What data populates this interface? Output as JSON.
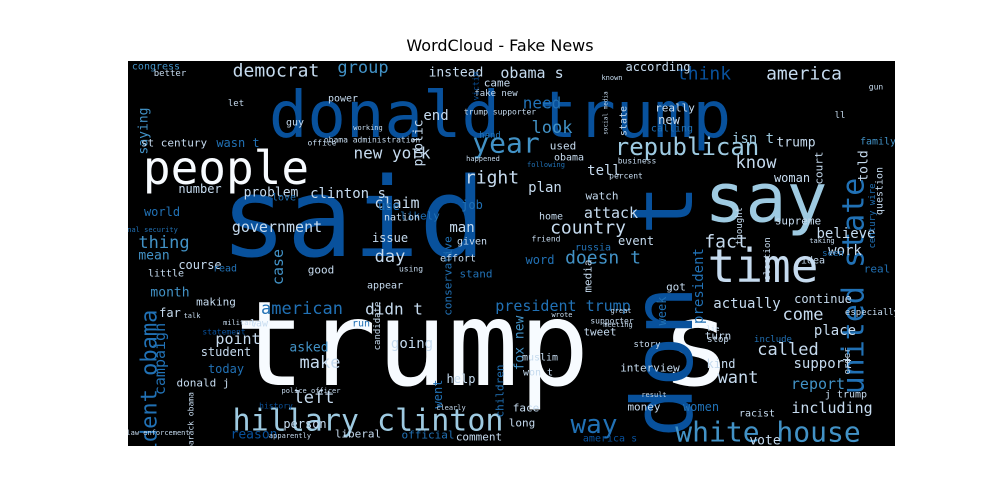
{
  "figure": {
    "title": "WordCloud - Fake News",
    "colors": {
      "background": "#000000",
      "dark": "#08519c",
      "mid": "#2171b5",
      "midlight": "#4292c6",
      "light": "#9ecae1",
      "pale": "#c6dbef",
      "white": "#f7fbff"
    }
  },
  "words": [
    {
      "text": "trump s",
      "c": "white"
    },
    {
      "text": "said",
      "c": "dark"
    },
    {
      "text": "donald trump",
      "c": "dark"
    },
    {
      "text": "don t",
      "c": "dark"
    },
    {
      "text": "say",
      "c": "light"
    },
    {
      "text": "people",
      "c": "white"
    },
    {
      "text": "time",
      "c": "pale"
    },
    {
      "text": "hillary clinton",
      "c": "light"
    },
    {
      "text": "united state",
      "c": "mid"
    },
    {
      "text": "white house",
      "c": "midlight"
    },
    {
      "text": "year",
      "c": "midlight"
    },
    {
      "text": "republican",
      "c": "light"
    },
    {
      "text": "president obama",
      "c": "mid"
    },
    {
      "text": "way",
      "c": "mid"
    },
    {
      "text": "democrat",
      "c": "pale"
    },
    {
      "text": "america",
      "c": "pale"
    },
    {
      "text": "new york",
      "c": "pale"
    },
    {
      "text": "obama s",
      "c": "pale"
    },
    {
      "text": "right",
      "c": "pale"
    },
    {
      "text": "country",
      "c": "pale"
    },
    {
      "text": "think",
      "c": "dark"
    },
    {
      "text": "american",
      "c": "mid"
    },
    {
      "text": "president trump",
      "c": "mid"
    },
    {
      "text": "know",
      "c": "pale"
    },
    {
      "text": "fact",
      "c": "pale"
    },
    {
      "text": "doesn t",
      "c": "midlight"
    },
    {
      "text": "thing",
      "c": "midlight"
    },
    {
      "text": "government",
      "c": "pale"
    },
    {
      "text": "group",
      "c": "midlight"
    },
    {
      "text": "look",
      "c": "midlight"
    },
    {
      "text": "need",
      "c": "mid"
    },
    {
      "text": "claim",
      "c": "pale"
    },
    {
      "text": "attack",
      "c": "pale"
    },
    {
      "text": "day",
      "c": "pale"
    },
    {
      "text": "didn t",
      "c": "pale"
    },
    {
      "text": "want",
      "c": "pale"
    },
    {
      "text": "called",
      "c": "pale"
    },
    {
      "text": "make",
      "c": "pale"
    },
    {
      "text": "left",
      "c": "pale"
    },
    {
      "text": "come",
      "c": "pale"
    },
    {
      "text": "including",
      "c": "pale"
    },
    {
      "text": "report",
      "c": "midlight"
    },
    {
      "text": "clinton s",
      "c": "pale"
    },
    {
      "text": "campaign",
      "c": "mid"
    },
    {
      "text": "president",
      "c": "mid"
    },
    {
      "text": "believe",
      "c": "pale"
    },
    {
      "text": "work",
      "c": "pale"
    },
    {
      "text": "case",
      "c": "midlight"
    },
    {
      "text": "point",
      "c": "pale"
    },
    {
      "text": "support",
      "c": "pale"
    },
    {
      "text": "actually",
      "c": "pale"
    },
    {
      "text": "told",
      "c": "pale"
    },
    {
      "text": "reason",
      "c": "dark"
    },
    {
      "text": "man",
      "c": "pale"
    },
    {
      "text": "isn t",
      "c": "light"
    },
    {
      "text": "fox new",
      "c": "midlight"
    },
    {
      "text": "tell",
      "c": "pale"
    },
    {
      "text": "plan",
      "c": "pale"
    },
    {
      "text": "woman",
      "c": "pale"
    },
    {
      "text": "month",
      "c": "midlight"
    },
    {
      "text": "place",
      "c": "pale"
    },
    {
      "text": "saying",
      "c": "midlight"
    },
    {
      "text": "going",
      "c": "pale"
    },
    {
      "text": "continue",
      "c": "pale"
    },
    {
      "text": "vote",
      "c": "pale"
    },
    {
      "text": "end",
      "c": "pale"
    },
    {
      "text": "st century",
      "c": "pale"
    },
    {
      "text": "trump",
      "c": "pale"
    },
    {
      "text": "mean",
      "c": "midlight"
    },
    {
      "text": "problem",
      "c": "pale"
    },
    {
      "text": "number",
      "c": "pale"
    },
    {
      "text": "world",
      "c": "mid"
    },
    {
      "text": "public",
      "c": "pale"
    },
    {
      "text": "course",
      "c": "pale"
    },
    {
      "text": "student",
      "c": "pale"
    },
    {
      "text": "asked",
      "c": "midlight"
    },
    {
      "text": "new",
      "c": "pale"
    },
    {
      "text": "week",
      "c": "mid"
    },
    {
      "text": "far",
      "c": "pale"
    },
    {
      "text": "today",
      "c": "mid"
    },
    {
      "text": "job",
      "c": "mid"
    },
    {
      "text": "according",
      "c": "pale"
    },
    {
      "text": "instead",
      "c": "pale"
    },
    {
      "text": "person",
      "c": "pale"
    },
    {
      "text": "women",
      "c": "mid"
    },
    {
      "text": "issue",
      "c": "pale"
    },
    {
      "text": "event",
      "c": "pale"
    },
    {
      "text": "word",
      "c": "mid"
    },
    {
      "text": "children",
      "c": "mid"
    },
    {
      "text": "help",
      "c": "pale"
    },
    {
      "text": "went",
      "c": "mid"
    },
    {
      "text": "use",
      "c": "mid"
    },
    {
      "text": "kind",
      "c": "pale"
    },
    {
      "text": "turn",
      "c": "pale"
    },
    {
      "text": "got",
      "c": "pale"
    },
    {
      "text": "used",
      "c": "pale"
    },
    {
      "text": "interview",
      "c": "pale"
    },
    {
      "text": "court",
      "c": "pale"
    },
    {
      "text": "supreme",
      "c": "pale"
    },
    {
      "text": "watch",
      "c": "pale"
    },
    {
      "text": "really",
      "c": "pale"
    },
    {
      "text": "tweet",
      "c": "pale"
    },
    {
      "text": "real",
      "c": "mid"
    },
    {
      "text": "came",
      "c": "pale"
    },
    {
      "text": "stand",
      "c": "mid"
    },
    {
      "text": "wasn t",
      "c": "mid"
    },
    {
      "text": "good",
      "c": "pale"
    },
    {
      "text": "donald j",
      "c": "pale"
    },
    {
      "text": "media",
      "c": "pale"
    },
    {
      "text": "making",
      "c": "pale"
    },
    {
      "text": "conservative",
      "c": "mid"
    },
    {
      "text": "muslim",
      "c": "pale"
    },
    {
      "text": "won t",
      "c": "pale"
    },
    {
      "text": "face",
      "c": "pale"
    },
    {
      "text": "long",
      "c": "pale"
    },
    {
      "text": "comment",
      "c": "pale"
    },
    {
      "text": "money",
      "c": "pale"
    },
    {
      "text": "liberal",
      "c": "pale"
    },
    {
      "text": "official",
      "c": "mid"
    },
    {
      "text": "america s",
      "c": "dark"
    },
    {
      "text": "j trump",
      "c": "pale"
    },
    {
      "text": "home",
      "c": "pale"
    },
    {
      "text": "likely",
      "c": "mid"
    },
    {
      "text": "appear",
      "c": "pale"
    },
    {
      "text": "nation",
      "c": "pale"
    },
    {
      "text": "given",
      "c": "pale"
    },
    {
      "text": "effort",
      "c": "pale"
    },
    {
      "text": "run",
      "c": "mid"
    },
    {
      "text": "love",
      "c": "mid"
    },
    {
      "text": "guy",
      "c": "pale"
    },
    {
      "text": "power",
      "c": "pale"
    },
    {
      "text": "congress",
      "c": "midlight"
    },
    {
      "text": "family",
      "c": "midlight"
    },
    {
      "text": "thought",
      "c": "pale"
    },
    {
      "text": "idea",
      "c": "pale"
    },
    {
      "text": "state",
      "c": "pale"
    },
    {
      "text": "law",
      "c": "pale"
    },
    {
      "text": "read",
      "c": "mid"
    },
    {
      "text": "little",
      "c": "pale"
    },
    {
      "text": "russia",
      "c": "mid"
    },
    {
      "text": "candidate",
      "c": "pale"
    },
    {
      "text": "racist",
      "c": "pale"
    },
    {
      "text": "story",
      "c": "pale"
    },
    {
      "text": "stop",
      "c": "pale"
    },
    {
      "text": "order",
      "c": "pale"
    },
    {
      "text": "include",
      "c": "mid"
    },
    {
      "text": "question",
      "c": "pale"
    },
    {
      "text": "century wire",
      "c": "mid"
    },
    {
      "text": "election",
      "c": "pale"
    },
    {
      "text": "especially",
      "c": "pale"
    },
    {
      "text": "seen",
      "c": "mid"
    },
    {
      "text": "barack obama",
      "c": "pale"
    },
    {
      "text": "ll",
      "c": "pale"
    },
    {
      "text": "let",
      "c": "pale"
    },
    {
      "text": "better",
      "c": "pale"
    },
    {
      "text": "office",
      "c": "pale"
    },
    {
      "text": "obama",
      "c": "pale"
    },
    {
      "text": "obama administration",
      "c": "pale"
    },
    {
      "text": "fake new",
      "c": "pale"
    },
    {
      "text": "trump supporter",
      "c": "pale"
    },
    {
      "text": "hand",
      "c": "mid"
    },
    {
      "text": "business",
      "c": "pale"
    },
    {
      "text": "percent",
      "c": "pale"
    },
    {
      "text": "friend",
      "c": "pale"
    },
    {
      "text": "national security",
      "c": "mid"
    },
    {
      "text": "using",
      "c": "pale"
    },
    {
      "text": "military",
      "c": "pale"
    },
    {
      "text": "talk",
      "c": "pale"
    },
    {
      "text": "statement",
      "c": "dark"
    },
    {
      "text": "great",
      "c": "pale"
    },
    {
      "text": "supporter",
      "c": "pale"
    },
    {
      "text": "meeting",
      "c": "pale"
    },
    {
      "text": "wrote",
      "c": "pale"
    },
    {
      "text": "police officer",
      "c": "pale"
    },
    {
      "text": "history",
      "c": "dark"
    },
    {
      "text": "clearly",
      "c": "pale"
    },
    {
      "text": "apparently",
      "c": "pale"
    },
    {
      "text": "law enforcement",
      "c": "pale"
    },
    {
      "text": "result",
      "c": "pale"
    },
    {
      "text": "lie",
      "c": "pale"
    },
    {
      "text": "working",
      "c": "pale"
    },
    {
      "text": "known",
      "c": "pale"
    },
    {
      "text": "calling",
      "c": "mid"
    },
    {
      "text": "gun",
      "c": "pale"
    },
    {
      "text": "taking",
      "c": "pale"
    },
    {
      "text": "happened",
      "c": "pale"
    },
    {
      "text": "following",
      "c": "mid"
    },
    {
      "text": "social media",
      "c": "pale"
    },
    {
      "text": "victim",
      "c": "dark"
    }
  ]
}
